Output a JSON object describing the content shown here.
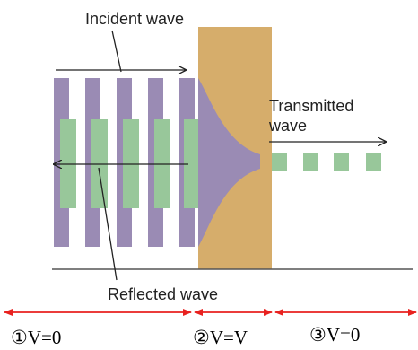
{
  "labels": {
    "incident": "Incident wave",
    "transmitted": [
      "Transmitted",
      "wave"
    ],
    "reflected": "Reflected wave"
  },
  "regions": [
    "①V=0",
    "②V=V",
    "③V=0"
  ]
}
